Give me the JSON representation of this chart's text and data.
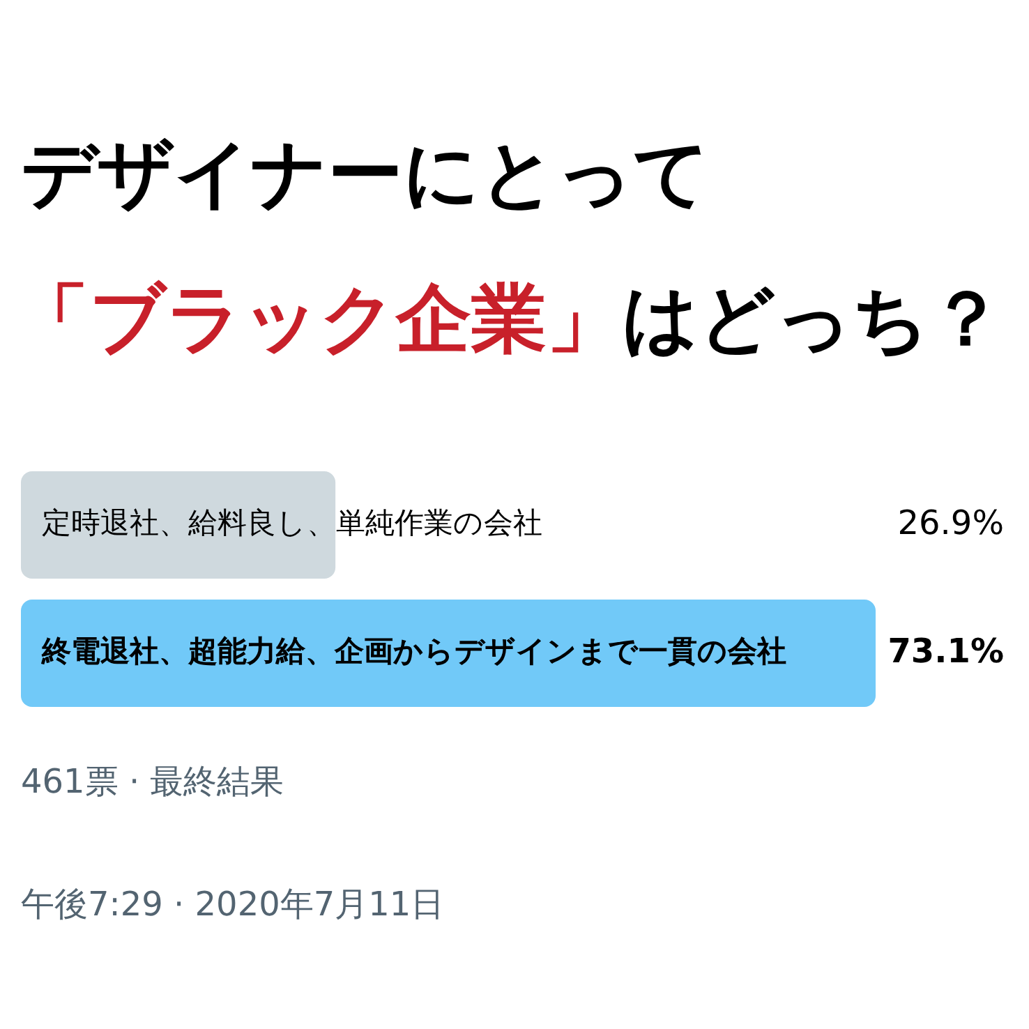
{
  "chart_data": {
    "type": "bar",
    "orientation": "horizontal",
    "title": "デザイナーにとって",
    "subtitle": "「ブラック企業」はどっち？",
    "categories": [
      "定時退社、給料良し、単純作業の会社",
      "終電退社、超能力給、企画からデザインまで一貫の会社"
    ],
    "values": [
      26.9,
      73.1
    ],
    "colors": [
      "#cfd9de",
      "#71c9f8"
    ],
    "value_labels": [
      "26.9%",
      "73.1%"
    ],
    "xlim": [
      0,
      73.1
    ],
    "annotations": [
      "461票 · 最終結果",
      "午後7:29 · 2020年7月11日"
    ]
  }
}
